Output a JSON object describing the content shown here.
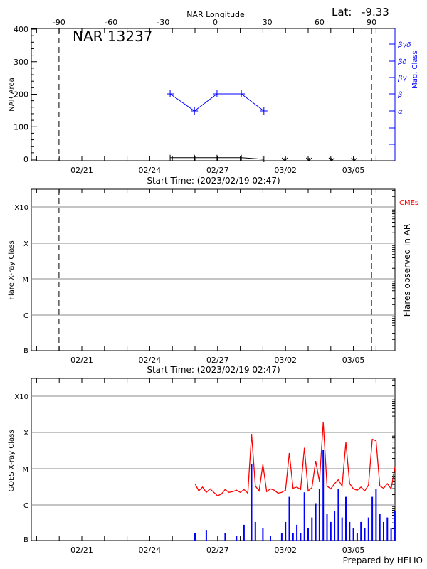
{
  "header": {
    "lat_label": "Lat:",
    "lat_value": "-9.33",
    "footer": "Prepared by HELIO"
  },
  "chart_data": [
    {
      "type": "line",
      "title": "NAR 13237",
      "ylabel": "NAR Area",
      "ylim": [
        0,
        400
      ],
      "yticks": [
        "0",
        "100",
        "200",
        "300",
        "400"
      ],
      "top_axis": {
        "label": "NAR Longitude",
        "ticks": [
          "-90",
          "-60",
          "-30",
          "0",
          "30",
          "60",
          "90"
        ],
        "range": [
          -90,
          90
        ]
      },
      "xlabel": "Start Time: (2023/02/19 02:47)",
      "xticks": [
        "02/21",
        "02/24",
        "02/27",
        "03/02",
        "03/05"
      ],
      "right_axis": {
        "label": "Mag. Class",
        "ticks": [
          "α",
          "β",
          "βγ",
          "βδ",
          "βγδ"
        ],
        "color": "#0000ff"
      },
      "limb_longitudes": [
        -90,
        90
      ],
      "series": [
        {
          "kind": "mag_class",
          "color": "#0000ff",
          "longitude": [
            -26,
            -12,
            1,
            15,
            28
          ],
          "values": [
            "β",
            "α",
            "β",
            "β",
            "α"
          ]
        },
        {
          "kind": "area",
          "color": "#000000",
          "longitude": [
            -26,
            -12,
            1,
            15,
            28
          ],
          "values": [
            5,
            5,
            5,
            5,
            0
          ]
        }
      ],
      "unobserved_longitudes": [
        40,
        54,
        67,
        80
      ]
    },
    {
      "type": "scatter",
      "ylabel": "Flare X-ray Class",
      "yticks": [
        "B",
        "C",
        "M",
        "X",
        "X10"
      ],
      "xlabel": "Start Time: (2023/02/19 02:47)",
      "xticks": [
        "02/21",
        "02/24",
        "02/27",
        "03/02",
        "03/05"
      ],
      "right_label": "Flares observed in AR",
      "legend": {
        "cme": "CMEs",
        "cme_color": "#ff0000"
      },
      "grid": true,
      "points": []
    },
    {
      "type": "line",
      "ylabel": "GOES X-ray Class",
      "yticks": [
        "B",
        "C",
        "M",
        "X",
        "X10"
      ],
      "xticks": [
        "02/21",
        "02/24",
        "02/27",
        "03/02",
        "03/05"
      ],
      "grid": true,
      "x": [
        "02/26 00:00",
        "02/26 04:00",
        "02/26 08:00",
        "02/26 12:00",
        "02/26 16:00",
        "02/26 20:00",
        "02/27 00:00",
        "02/27 04:00",
        "02/27 08:00",
        "02/27 12:00",
        "02/27 16:00",
        "02/27 20:00",
        "02/28 00:00",
        "02/28 04:00",
        "02/28 08:00",
        "02/28 12:00",
        "02/28 16:00",
        "02/28 20:00",
        "03/01 00:00",
        "03/01 04:00",
        "03/01 08:00",
        "03/01 12:00",
        "03/01 16:00",
        "03/01 20:00",
        "03/02 00:00",
        "03/02 04:00",
        "03/02 08:00",
        "03/02 12:00",
        "03/02 16:00",
        "03/02 20:00",
        "03/03 00:00",
        "03/03 04:00",
        "03/03 08:00",
        "03/03 12:00",
        "03/03 16:00",
        "03/03 20:00",
        "03/04 00:00",
        "03/04 04:00",
        "03/04 08:00",
        "03/04 12:00",
        "03/04 16:00",
        "03/04 20:00",
        "03/05 00:00",
        "03/05 04:00",
        "03/05 08:00",
        "03/05 12:00",
        "03/05 16:00",
        "03/05 20:00",
        "03/06 00:00",
        "03/06 04:00",
        "03/06 08:00",
        "03/06 12:00",
        "03/06 16:00",
        "03/06 20:00"
      ],
      "series": [
        {
          "color": "#ff0000",
          "values": [
            "C3.5",
            "C2.2",
            "C2.8",
            "C2.0",
            "C2.5",
            "C2.0",
            "C1.6",
            "C1.8",
            "C2.4",
            "C2.0",
            "C2.1",
            "C2.3",
            "C2.0",
            "C2.4",
            "C1.9",
            "M8.5",
            "C3.0",
            "C2.2",
            "M1.2",
            "C2.1",
            "C2.5",
            "C2.3",
            "C1.9",
            "C2.0",
            "C2.3",
            "M2.5",
            "C2.6",
            "C2.8",
            "C2.4",
            "M3.5",
            "C2.2",
            "C2.7",
            "M1.5",
            "C4.0",
            "X1.8",
            "C3.0",
            "C2.5",
            "C3.5",
            "C4.5",
            "C3.0",
            "M5.0",
            "C3.5",
            "C2.5",
            "C2.3",
            "C2.8",
            "C2.2",
            "C3.2",
            "M6.0",
            "M5.5",
            "C3.0",
            "C2.6",
            "C3.5",
            "C2.5",
            "M1.0"
          ]
        },
        {
          "color": "#0000ff",
          "values": [
            "B1.5",
            "A5",
            "A5",
            "B1.8",
            "A5",
            "A5",
            "A5",
            "A5",
            "B1.5",
            "A5",
            "A5",
            "B1.2",
            "A5",
            "B2.5",
            "A5",
            "M1.2",
            "B3.0",
            "A5",
            "B2.0",
            "A5",
            "B1.2",
            "A5",
            "A5",
            "B1.5",
            "B3.0",
            "C1.5",
            "B1.5",
            "B2.5",
            "B1.5",
            "C2.0",
            "B2.0",
            "B4.0",
            "C1.0",
            "C2.5",
            "M3.0",
            "B5.0",
            "B3.0",
            "B6.0",
            "C2.5",
            "B4.0",
            "C1.5",
            "B3.0",
            "B2.0",
            "B1.5",
            "B3.0",
            "B2.0",
            "B4.0",
            "C1.5",
            "C2.5",
            "B5.0",
            "B3.0",
            "B4.0",
            "B2.0",
            "B6.0"
          ]
        }
      ]
    }
  ]
}
